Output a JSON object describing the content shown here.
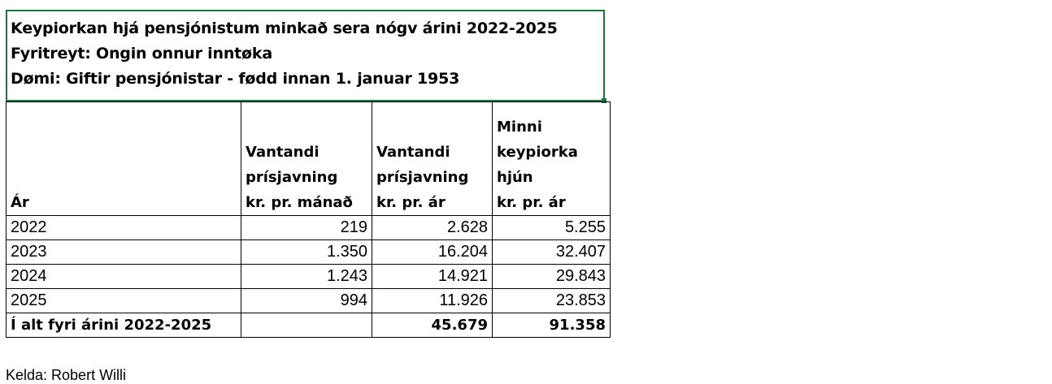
{
  "title_box": {
    "line1": "Keypiorkan hjá pensjónistum minkað sera nógv árini 2022-2025",
    "line2": "Fyritreyt: Ongin onnur inntøka",
    "line3": "Dømi: Giftir pensjónistar - fødd innan 1. januar 1953"
  },
  "table": {
    "headers": {
      "col1": [
        "Ár"
      ],
      "col2": [
        "Vantandi",
        "prísjavning",
        "kr. pr. mánað"
      ],
      "col3": [
        "Vantandi",
        "prísjavning",
        "kr. pr. ár"
      ],
      "col4": [
        "Minni",
        "keypiorka",
        "hjún",
        "kr. pr. ár"
      ]
    },
    "rows": [
      {
        "year": "2022",
        "monthly": "219",
        "yearly": "2.628",
        "couple": "5.255"
      },
      {
        "year": "2023",
        "monthly": "1.350",
        "yearly": "16.204",
        "couple": "32.407"
      },
      {
        "year": "2024",
        "monthly": "1.243",
        "yearly": "14.921",
        "couple": "29.843"
      },
      {
        "year": "2025",
        "monthly": "994",
        "yearly": "11.926",
        "couple": "23.853"
      }
    ],
    "total": {
      "label": "Í alt fyri árini 2022-2025",
      "monthly": "",
      "yearly": "45.679",
      "couple": "91.358"
    }
  },
  "source": "Kelda: Robert Willi"
}
